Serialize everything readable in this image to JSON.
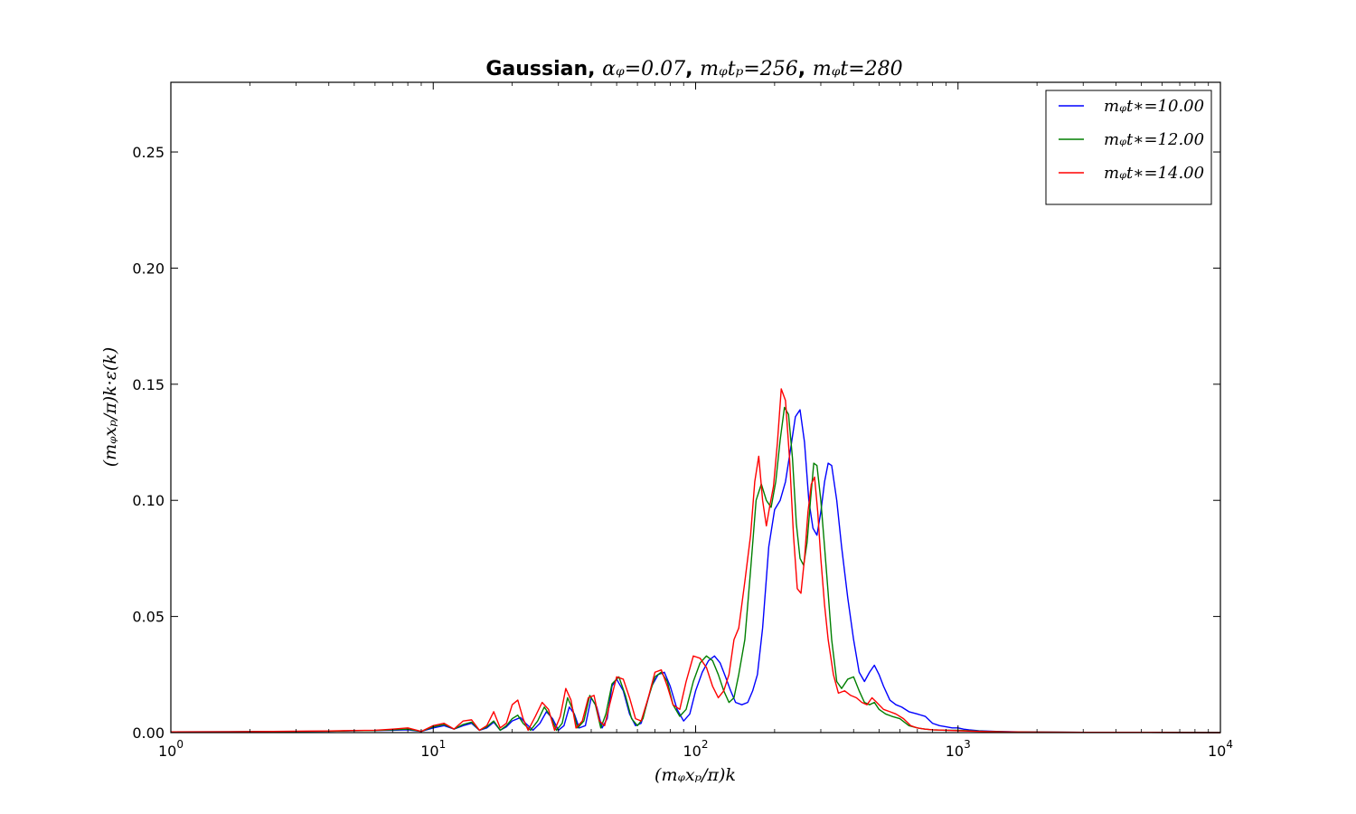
{
  "chart_data": {
    "type": "line",
    "title_parts": [
      {
        "text": "Gaussian, ",
        "style": "bold"
      },
      {
        "text": "αᵩ=0.07",
        "style": "math"
      },
      {
        "text": ", ",
        "style": "bold"
      },
      {
        "text": "mᵩtₚ=256",
        "style": "math"
      },
      {
        "text": ", ",
        "style": "bold"
      },
      {
        "text": "mᵩt=280",
        "style": "math"
      }
    ],
    "xlabel": "(mᵩxₚ/π)k",
    "ylabel": "(mᵩxₚ/π)k·ε(k)",
    "xscale": "log",
    "xlim": [
      1,
      10000
    ],
    "ylim": [
      0,
      0.28
    ],
    "x_ticks": [
      {
        "value": 1,
        "base": "10",
        "exp": "0"
      },
      {
        "value": 10,
        "base": "10",
        "exp": "1"
      },
      {
        "value": 100,
        "base": "10",
        "exp": "2"
      },
      {
        "value": 1000,
        "base": "10",
        "exp": "3"
      },
      {
        "value": 10000,
        "base": "10",
        "exp": "4"
      }
    ],
    "y_ticks": [
      {
        "value": 0.0,
        "label": "0.00"
      },
      {
        "value": 0.05,
        "label": "0.05"
      },
      {
        "value": 0.1,
        "label": "0.10"
      },
      {
        "value": 0.15,
        "label": "0.15"
      },
      {
        "value": 0.2,
        "label": "0.20"
      },
      {
        "value": 0.25,
        "label": "0.25"
      }
    ],
    "grid": false,
    "legend_position": "top-right",
    "series": [
      {
        "name": "mᵩt∗=10.00",
        "color": "#0000ff",
        "x": [
          1,
          2,
          3,
          4,
          5,
          6,
          7,
          8,
          9,
          10,
          11,
          12,
          13,
          14,
          15,
          16,
          17,
          18,
          19,
          20,
          21.5,
          22.5,
          24,
          25.5,
          27,
          28.5,
          30,
          31.5,
          33,
          34.5,
          36,
          38,
          40,
          42,
          44,
          46,
          48,
          50,
          53,
          56,
          59,
          62,
          65,
          68,
          72,
          76,
          80,
          85,
          90,
          95,
          100,
          106,
          112,
          118,
          124,
          130,
          136,
          142,
          150,
          158,
          165,
          172,
          180,
          190,
          200,
          210,
          220,
          230,
          240,
          250,
          260,
          270,
          280,
          290,
          300,
          310,
          320,
          330,
          345,
          360,
          380,
          400,
          420,
          440,
          460,
          480,
          500,
          520,
          550,
          580,
          610,
          650,
          700,
          750,
          800,
          850,
          900,
          950,
          1000,
          1050,
          1100,
          1200,
          1400,
          1700,
          2000,
          3000,
          5000,
          10000
        ],
        "y": [
          0.0003,
          0.0004,
          0.0005,
          0.0006,
          0.0008,
          0.0009,
          0.001,
          0.0012,
          0.0005,
          0.002,
          0.003,
          0.0015,
          0.003,
          0.004,
          0.001,
          0.002,
          0.0045,
          0.001,
          0.0025,
          0.005,
          0.0065,
          0.004,
          0.001,
          0.004,
          0.009,
          0.006,
          0.001,
          0.003,
          0.011,
          0.008,
          0.002,
          0.003,
          0.015,
          0.011,
          0.002,
          0.006,
          0.02,
          0.023,
          0.018,
          0.008,
          0.003,
          0.004,
          0.012,
          0.02,
          0.025,
          0.026,
          0.02,
          0.01,
          0.005,
          0.008,
          0.018,
          0.026,
          0.031,
          0.033,
          0.03,
          0.024,
          0.018,
          0.013,
          0.012,
          0.013,
          0.018,
          0.025,
          0.045,
          0.08,
          0.096,
          0.1,
          0.108,
          0.122,
          0.136,
          0.139,
          0.125,
          0.1,
          0.088,
          0.085,
          0.095,
          0.108,
          0.116,
          0.115,
          0.1,
          0.08,
          0.058,
          0.04,
          0.026,
          0.022,
          0.026,
          0.029,
          0.025,
          0.02,
          0.014,
          0.012,
          0.011,
          0.009,
          0.008,
          0.007,
          0.004,
          0.003,
          0.0025,
          0.002,
          0.002,
          0.0015,
          0.0012,
          0.0008,
          0.0005,
          0.0003,
          0.0002,
          0.0001,
          0.0001,
          0.0
        ]
      },
      {
        "name": "mᵩt∗=12.00",
        "color": "#007f00",
        "x": [
          1,
          2,
          3,
          4,
          5,
          6,
          7,
          8,
          9,
          10,
          11,
          12,
          13,
          14,
          15,
          16,
          17,
          18,
          19,
          20,
          21,
          22,
          23.5,
          25,
          26.5,
          28,
          29.5,
          31,
          32.5,
          34,
          35.5,
          37.5,
          39.5,
          41.5,
          43.5,
          45.5,
          48,
          51,
          54,
          57,
          60,
          63,
          66,
          70,
          74,
          78,
          82,
          87,
          92,
          98,
          104,
          110,
          116,
          122,
          128,
          134,
          140,
          146,
          154,
          162,
          170,
          178,
          186,
          194,
          202,
          210,
          218,
          226,
          234,
          242,
          250,
          258,
          266,
          274,
          282,
          290,
          300,
          310,
          320,
          330,
          345,
          360,
          380,
          400,
          420,
          440,
          460,
          480,
          500,
          530,
          560,
          600,
          650,
          700,
          750,
          800,
          900,
          1000,
          1100,
          1300,
          1600,
          2000,
          3000,
          5000,
          10000
        ],
        "y": [
          0.0003,
          0.0004,
          0.0005,
          0.0006,
          0.0008,
          0.0009,
          0.0012,
          0.0015,
          0.0005,
          0.0025,
          0.0035,
          0.0015,
          0.0035,
          0.0045,
          0.001,
          0.0025,
          0.005,
          0.001,
          0.003,
          0.006,
          0.0075,
          0.004,
          0.001,
          0.005,
          0.011,
          0.007,
          0.001,
          0.004,
          0.015,
          0.01,
          0.002,
          0.005,
          0.016,
          0.012,
          0.002,
          0.008,
          0.021,
          0.024,
          0.016,
          0.006,
          0.003,
          0.006,
          0.015,
          0.024,
          0.026,
          0.022,
          0.012,
          0.007,
          0.01,
          0.022,
          0.03,
          0.033,
          0.031,
          0.025,
          0.018,
          0.013,
          0.015,
          0.025,
          0.04,
          0.07,
          0.1,
          0.107,
          0.1,
          0.097,
          0.108,
          0.126,
          0.14,
          0.137,
          0.118,
          0.09,
          0.075,
          0.072,
          0.082,
          0.1,
          0.116,
          0.115,
          0.1,
          0.08,
          0.06,
          0.04,
          0.022,
          0.019,
          0.023,
          0.024,
          0.018,
          0.013,
          0.012,
          0.013,
          0.01,
          0.008,
          0.007,
          0.006,
          0.003,
          0.002,
          0.0015,
          0.0012,
          0.001,
          0.001,
          0.0008,
          0.0005,
          0.0003,
          0.0002,
          0.0001,
          0.0001,
          0.0
        ]
      },
      {
        "name": "mᵩt∗=14.00",
        "color": "#ff0000",
        "x": [
          1,
          2,
          3,
          4,
          5,
          6,
          7,
          8,
          9,
          10,
          11,
          12,
          13,
          14,
          15,
          16,
          17,
          18,
          19,
          20,
          21,
          22,
          23,
          24.5,
          26,
          27.5,
          29,
          30.5,
          32,
          33.5,
          35,
          37,
          39,
          41,
          43,
          45,
          47,
          50,
          53,
          56,
          59,
          62,
          66,
          70,
          74,
          78,
          82,
          87,
          92,
          98,
          104,
          110,
          116,
          122,
          128,
          134,
          140,
          146,
          154,
          162,
          168,
          174,
          180,
          186,
          192,
          198,
          205,
          212,
          220,
          228,
          236,
          244,
          252,
          260,
          268,
          276,
          284,
          292,
          300,
          310,
          320,
          335,
          350,
          370,
          390,
          410,
          430,
          450,
          470,
          490,
          520,
          550,
          580,
          620,
          660,
          700,
          750,
          800,
          900,
          1000,
          1200,
          1500,
          2000,
          3000,
          5000,
          10000
        ],
        "y": [
          0.0003,
          0.0004,
          0.0006,
          0.0007,
          0.0009,
          0.001,
          0.0015,
          0.002,
          0.0005,
          0.003,
          0.004,
          0.0015,
          0.005,
          0.0055,
          0.001,
          0.003,
          0.009,
          0.002,
          0.004,
          0.012,
          0.014,
          0.006,
          0.001,
          0.007,
          0.013,
          0.01,
          0.001,
          0.007,
          0.019,
          0.014,
          0.002,
          0.005,
          0.015,
          0.016,
          0.005,
          0.003,
          0.012,
          0.024,
          0.023,
          0.015,
          0.006,
          0.005,
          0.015,
          0.026,
          0.027,
          0.02,
          0.012,
          0.01,
          0.022,
          0.033,
          0.032,
          0.028,
          0.02,
          0.015,
          0.018,
          0.025,
          0.04,
          0.045,
          0.065,
          0.085,
          0.108,
          0.119,
          0.1,
          0.089,
          0.098,
          0.106,
          0.125,
          0.148,
          0.143,
          0.118,
          0.085,
          0.062,
          0.06,
          0.075,
          0.095,
          0.107,
          0.11,
          0.095,
          0.075,
          0.055,
          0.04,
          0.025,
          0.017,
          0.018,
          0.016,
          0.015,
          0.013,
          0.012,
          0.015,
          0.013,
          0.01,
          0.009,
          0.008,
          0.006,
          0.003,
          0.002,
          0.0015,
          0.0012,
          0.001,
          0.0008,
          0.0005,
          0.0003,
          0.0002,
          0.0001,
          0.0001,
          0.0
        ]
      }
    ]
  }
}
